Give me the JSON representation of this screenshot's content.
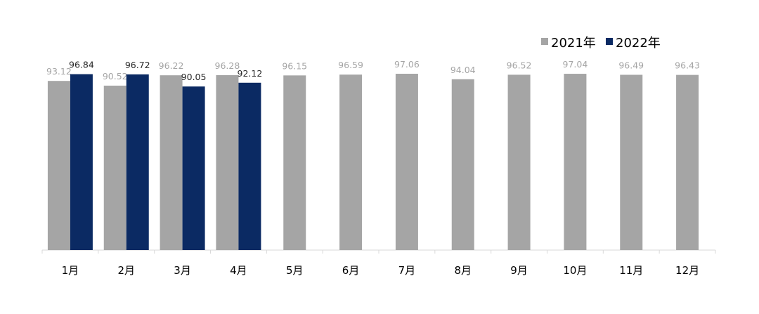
{
  "chart_data": {
    "type": "bar",
    "categories": [
      "1月",
      "2月",
      "3月",
      "4月",
      "5月",
      "6月",
      "7月",
      "8月",
      "9月",
      "10月",
      "11月",
      "12月"
    ],
    "series": [
      {
        "name": "2021年",
        "color": "#a5a5a5",
        "label_color": "#a5a5a5",
        "values": [
          93.12,
          90.52,
          96.22,
          96.28,
          96.15,
          96.59,
          97.06,
          94.04,
          96.52,
          97.04,
          96.49,
          96.43
        ],
        "labels": [
          "93.12",
          "90.52",
          "96.22",
          "96.28",
          "96.15",
          "96.59",
          "97.06",
          "94.04",
          "96.52",
          "97.04",
          "96.49",
          "96.43"
        ]
      },
      {
        "name": "2022年",
        "color": "#0b2a63",
        "label_color": "#262626",
        "values": [
          96.84,
          96.72,
          90.05,
          92.12,
          null,
          null,
          null,
          null,
          null,
          null,
          null,
          null
        ],
        "labels": [
          "96.84",
          "96.72",
          "90.05",
          "92.12",
          null,
          null,
          null,
          null,
          null,
          null,
          null,
          null
        ]
      }
    ],
    "ylim": [
      0,
      97.06
    ],
    "grid": false,
    "legend": "top-right",
    "axis_color": "#d9d9d9"
  }
}
